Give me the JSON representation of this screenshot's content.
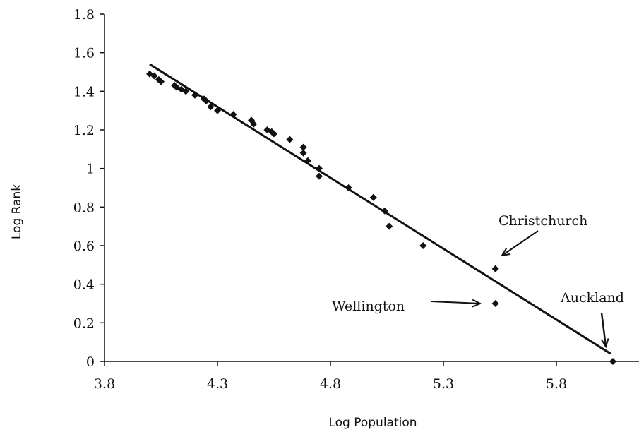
{
  "chart_data": {
    "type": "scatter",
    "xlabel": "Log Population",
    "ylabel": "Log Rank",
    "xlim": [
      3.8,
      6.2
    ],
    "ylim": [
      0,
      1.8
    ],
    "xticks": [
      3.8,
      4.3,
      4.8,
      5.3,
      5.8
    ],
    "xtick_labels": [
      "3.8",
      "4.3",
      "4.8",
      "5.3",
      "5.8"
    ],
    "yticks": [
      0,
      0.2,
      0.4,
      0.6,
      0.8,
      1,
      1.2,
      1.4,
      1.6,
      1.8
    ],
    "ytick_labels": [
      "0",
      "0.2",
      "0.4",
      "0.6",
      "0.8",
      "1",
      "1.2",
      "1.4",
      "1.6",
      "1.8"
    ],
    "grid": false,
    "series": [
      {
        "marker": "diamond",
        "color": "#111111",
        "points": [
          [
            4.0,
            1.49
          ],
          [
            4.02,
            1.48
          ],
          [
            4.04,
            1.46
          ],
          [
            4.05,
            1.45
          ],
          [
            4.11,
            1.43
          ],
          [
            4.12,
            1.42
          ],
          [
            4.14,
            1.41
          ],
          [
            4.16,
            1.4
          ],
          [
            4.2,
            1.38
          ],
          [
            4.24,
            1.36
          ],
          [
            4.25,
            1.35
          ],
          [
            4.27,
            1.32
          ],
          [
            4.3,
            1.3
          ],
          [
            4.37,
            1.28
          ],
          [
            4.45,
            1.25
          ],
          [
            4.46,
            1.23
          ],
          [
            4.52,
            1.2
          ],
          [
            4.54,
            1.19
          ],
          [
            4.55,
            1.18
          ],
          [
            4.62,
            1.15
          ],
          [
            4.68,
            1.11
          ],
          [
            4.68,
            1.08
          ],
          [
            4.7,
            1.04
          ],
          [
            4.75,
            1.0
          ],
          [
            4.75,
            0.96
          ],
          [
            4.88,
            0.9
          ],
          [
            4.99,
            0.85
          ],
          [
            5.04,
            0.78
          ],
          [
            5.06,
            0.7
          ],
          [
            5.21,
            0.6
          ],
          [
            5.53,
            0.48
          ],
          [
            5.53,
            0.3
          ],
          [
            6.05,
            0.0
          ]
        ]
      }
    ],
    "trendline": {
      "x": [
        4.0,
        6.04
      ],
      "y": [
        1.54,
        0.04
      ]
    },
    "annotations": [
      {
        "text": "Christchurch",
        "point": [
          5.53,
          0.48
        ]
      },
      {
        "text": "Wellington",
        "point": [
          5.53,
          0.3
        ]
      },
      {
        "text": "Auckland",
        "point": [
          6.05,
          0.0
        ]
      }
    ]
  }
}
